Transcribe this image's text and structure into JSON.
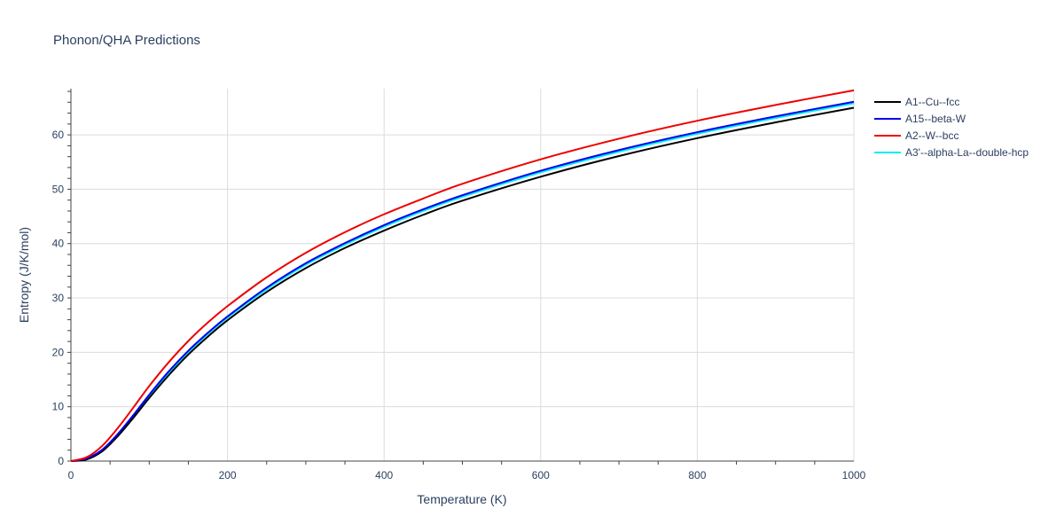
{
  "chart_data": {
    "type": "line",
    "title": "Phonon/QHA Predictions",
    "xlabel": "Temperature (K)",
    "ylabel": "Entropy (J/K/mol)",
    "xlim": [
      0,
      1000
    ],
    "ylim": [
      0,
      68.5
    ],
    "xticks": [
      0,
      200,
      400,
      600,
      800,
      1000
    ],
    "yticks": [
      0,
      10,
      20,
      30,
      40,
      50,
      60
    ],
    "grid": true,
    "legend_position": "right",
    "x": [
      0,
      20,
      40,
      60,
      80,
      100,
      125,
      150,
      175,
      200,
      250,
      300,
      350,
      400,
      450,
      500,
      600,
      700,
      800,
      900,
      1000
    ],
    "series": [
      {
        "name": "A1--Cu--fcc",
        "color": "#000000",
        "values": [
          0,
          0.3,
          1.8,
          4.6,
          8.0,
          11.6,
          15.8,
          19.6,
          22.9,
          25.9,
          31.1,
          35.5,
          39.2,
          42.4,
          45.3,
          47.9,
          52.3,
          56.1,
          59.4,
          62.3,
          65.0
        ]
      },
      {
        "name": "A15--beta-W",
        "color": "#0000ee",
        "values": [
          0,
          0.5,
          2.1,
          5.0,
          8.5,
          12.2,
          16.5,
          20.3,
          23.6,
          26.6,
          31.9,
          36.4,
          40.1,
          43.4,
          46.3,
          48.9,
          53.4,
          57.2,
          60.5,
          63.4,
          66.1
        ]
      },
      {
        "name": "A2--W--bcc",
        "color": "#ee0000",
        "values": [
          0,
          0.7,
          2.8,
          6.1,
          9.9,
          13.8,
          18.2,
          22.1,
          25.5,
          28.5,
          33.8,
          38.3,
          42.1,
          45.4,
          48.3,
          51.0,
          55.5,
          59.3,
          62.6,
          65.5,
          68.2
        ]
      },
      {
        "name": "A3'--alpha-La--double-hcp",
        "color": "#00eeee",
        "values": [
          0,
          0.45,
          2.0,
          4.9,
          8.4,
          12.0,
          16.3,
          20.1,
          23.4,
          26.4,
          31.6,
          36.1,
          39.8,
          43.1,
          46.0,
          48.6,
          53.1,
          56.9,
          60.2,
          63.1,
          65.8
        ]
      }
    ]
  }
}
